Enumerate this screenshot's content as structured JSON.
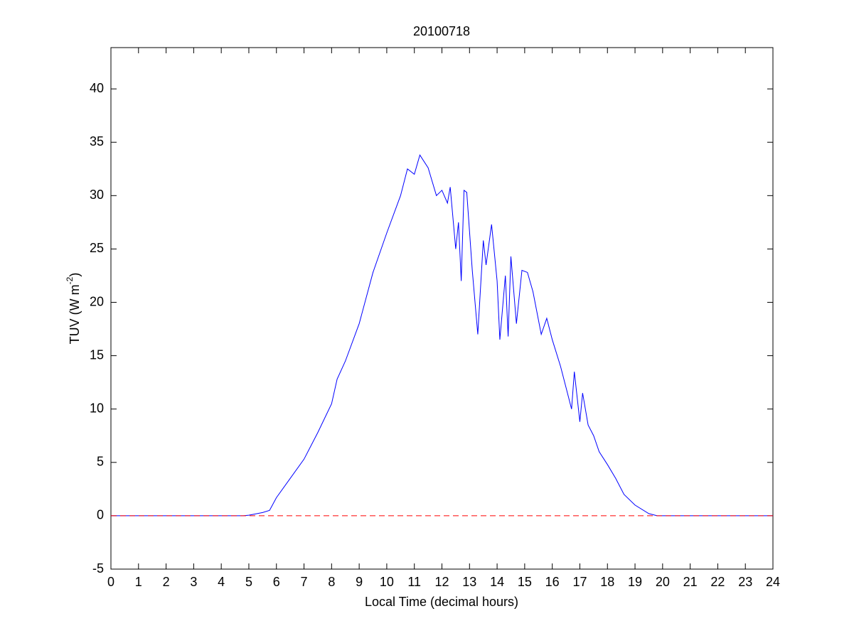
{
  "chart_data": {
    "type": "line",
    "title": "20100718",
    "xlabel": "Local Time (decimal hours)",
    "ylabel": [
      "TUV (W m",
      "-2",
      ")"
    ],
    "x": [
      0,
      4.8,
      5,
      5.5,
      5.75,
      6,
      6.5,
      7,
      7.5,
      8,
      8.2,
      8.5,
      9,
      9.5,
      10,
      10.5,
      10.75,
      11,
      11.2,
      11.5,
      11.8,
      12,
      12.2,
      12.3,
      12.5,
      12.6,
      12.7,
      12.8,
      12.9,
      13.1,
      13.3,
      13.5,
      13.6,
      13.8,
      14,
      14.1,
      14.3,
      14.4,
      14.5,
      14.7,
      14.9,
      15.1,
      15.3,
      15.6,
      15.8,
      16,
      16.3,
      16.5,
      16.7,
      16.8,
      17,
      17.1,
      17.3,
      17.5,
      17.7,
      18,
      18.3,
      18.6,
      19,
      19.5,
      19.8,
      24
    ],
    "series": [
      {
        "color": "#0000ff",
        "values": [
          0,
          0,
          0.05,
          0.3,
          0.5,
          1.7,
          3.5,
          5.3,
          7.8,
          10.5,
          12.8,
          14.5,
          18,
          22.8,
          26.5,
          30,
          32.5,
          32,
          33.8,
          32.6,
          30,
          30.5,
          29.3,
          30.8,
          25,
          27.5,
          22,
          30.5,
          30.3,
          23,
          17,
          25.8,
          23.5,
          27.3,
          22,
          16.5,
          22.5,
          16.8,
          24.3,
          18,
          23,
          22.8,
          21,
          17,
          18.5,
          16.5,
          14,
          12,
          10,
          13.5,
          8.8,
          11.5,
          8.5,
          7.5,
          6,
          4.8,
          3.5,
          2,
          1,
          0.2,
          0,
          0
        ]
      }
    ],
    "reference_line": {
      "y": 0,
      "color": "#ff0000",
      "style": "dashed"
    },
    "xlim": [
      0,
      24
    ],
    "xticks": [
      0,
      1,
      2,
      3,
      4,
      5,
      6,
      7,
      8,
      9,
      10,
      11,
      12,
      13,
      14,
      15,
      16,
      17,
      18,
      19,
      20,
      21,
      22,
      23,
      24
    ],
    "ylim": [
      -5,
      43.87
    ],
    "yticks": [
      -5,
      0,
      5,
      10,
      15,
      20,
      25,
      30,
      35,
      40
    ],
    "grid": false
  }
}
